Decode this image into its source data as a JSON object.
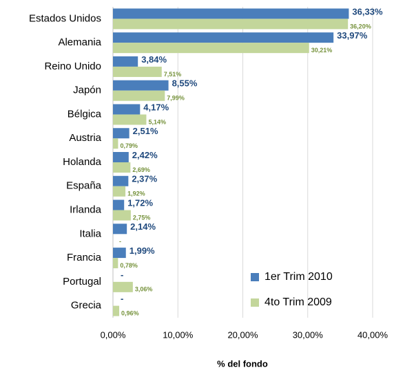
{
  "chart_data": {
    "type": "barh",
    "categories": [
      "Estados Unidos",
      "Alemania",
      "Reino Unido",
      "Japón",
      "Bélgica",
      "Austria",
      "Holanda",
      "España",
      "Irlanda",
      "Italia",
      "Francia",
      "Portugal",
      "Grecia"
    ],
    "series": [
      {
        "name": "1er Trim 2010",
        "color": "#4a7ebb",
        "values": [
          36.33,
          33.97,
          3.84,
          8.55,
          4.17,
          2.51,
          2.42,
          2.37,
          1.72,
          2.14,
          1.99,
          null,
          null
        ],
        "value_labels": [
          "36,33%",
          "33,97%",
          "3,84%",
          "8,55%",
          "4,17%",
          "2,51%",
          "2,42%",
          "2,37%",
          "1,72%",
          "2,14%",
          "1,99%",
          "-",
          "-"
        ]
      },
      {
        "name": "4to Trim 2009",
        "color": "#c3d69b",
        "values": [
          36.2,
          30.21,
          7.51,
          7.99,
          5.14,
          0.79,
          2.69,
          1.92,
          2.75,
          null,
          0.78,
          3.06,
          0.96
        ],
        "value_labels": [
          "36,20%",
          "30,21%",
          "7,51%",
          "7,99%",
          "5,14%",
          "0,79%",
          "2,69%",
          "1,92%",
          "2,75%",
          "-",
          "0,78%",
          "3,06%",
          "0,96%"
        ]
      }
    ],
    "xlabel": "% del fondo",
    "xlim": [
      0,
      40
    ],
    "xticks": [
      {
        "value": 0,
        "label": "0,00%"
      },
      {
        "value": 10,
        "label": "10,00%"
      },
      {
        "value": 20,
        "label": "20,00%"
      },
      {
        "value": 30,
        "label": "30,00%"
      },
      {
        "value": 40,
        "label": "40,00%"
      }
    ],
    "grid": true,
    "legend": "lower right"
  }
}
